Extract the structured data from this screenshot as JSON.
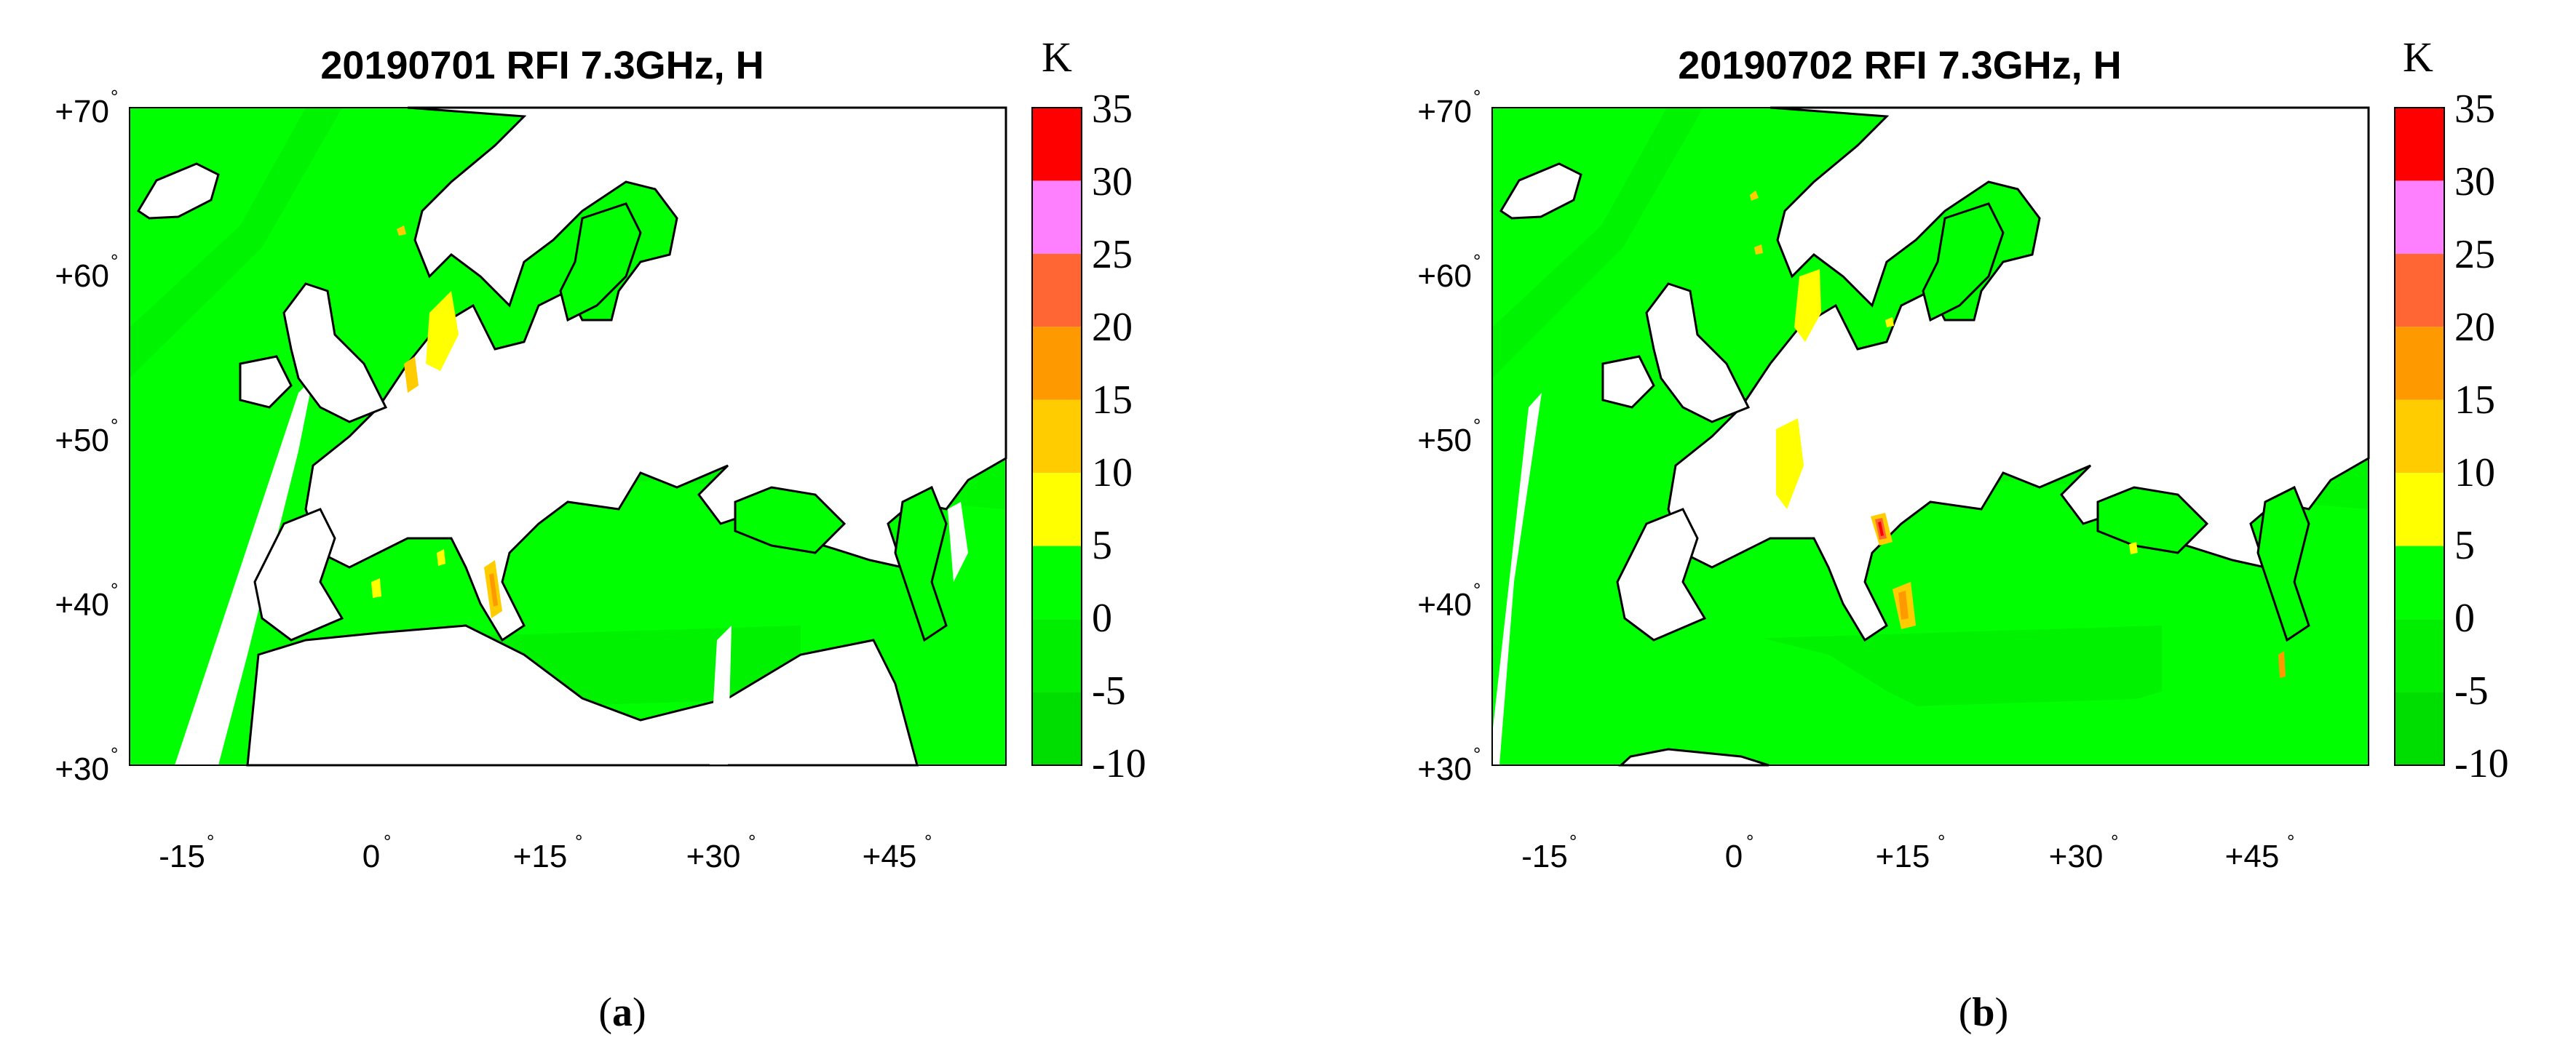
{
  "panels": [
    {
      "title": "20190701 RFI 7.3GHz, H",
      "caption_open": "(",
      "caption_letter": "a",
      "caption_close": ")"
    },
    {
      "title": "20190702 RFI 7.3GHz, H",
      "caption_open": "(",
      "caption_letter": "b",
      "caption_close": ")"
    }
  ],
  "map_axes": {
    "latitude_labels": [
      "+70",
      "+60",
      "+50",
      "+40",
      "+30"
    ],
    "longitude_labels": [
      "-15",
      "0",
      "+15",
      "+30",
      "+45"
    ],
    "degree_symbol": "°",
    "lat_range": [
      30,
      70
    ],
    "lon_range": [
      -25,
      55
    ]
  },
  "colorbar": {
    "unit": "K",
    "ticks": [
      "35",
      "30",
      "25",
      "20",
      "15",
      "10",
      "5",
      "0",
      "-5",
      "-10"
    ],
    "bins_top_to_bottom": [
      "#ff0000",
      "#ff80ff",
      "#ff6633",
      "#ff9900",
      "#ffcc00",
      "#ffff00",
      "#00ff00",
      "#00ee00",
      "#00dd00"
    ]
  },
  "colors": {
    "land": "#ffffff",
    "sea_rfi_low": "#00ff00",
    "coastline": "#000000"
  }
}
